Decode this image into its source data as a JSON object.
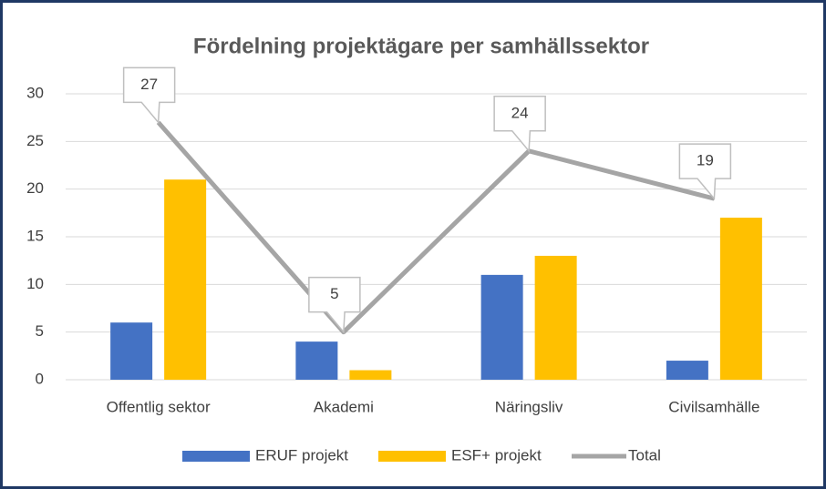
{
  "chart_data": {
    "type": "bar",
    "title": "Fördelning projektägare per samhällssektor",
    "categories": [
      "Offentlig sektor",
      "Akademi",
      "Näringsliv",
      "Civilsamhälle"
    ],
    "series": [
      {
        "name": "ERUF projekt",
        "color": "#4472c4",
        "values": [
          6,
          4,
          11,
          2
        ]
      },
      {
        "name": "ESF+ projekt",
        "color": "#ffc000",
        "values": [
          21,
          1,
          13,
          17
        ]
      },
      {
        "name": "Total",
        "color": "#a5a5a5",
        "type": "line",
        "values": [
          27,
          5,
          24,
          19
        ]
      }
    ],
    "ylim": [
      0,
      30
    ],
    "yticks": [
      0,
      5,
      10,
      15,
      20,
      25,
      30
    ],
    "grid": true,
    "legend": "bottom"
  }
}
